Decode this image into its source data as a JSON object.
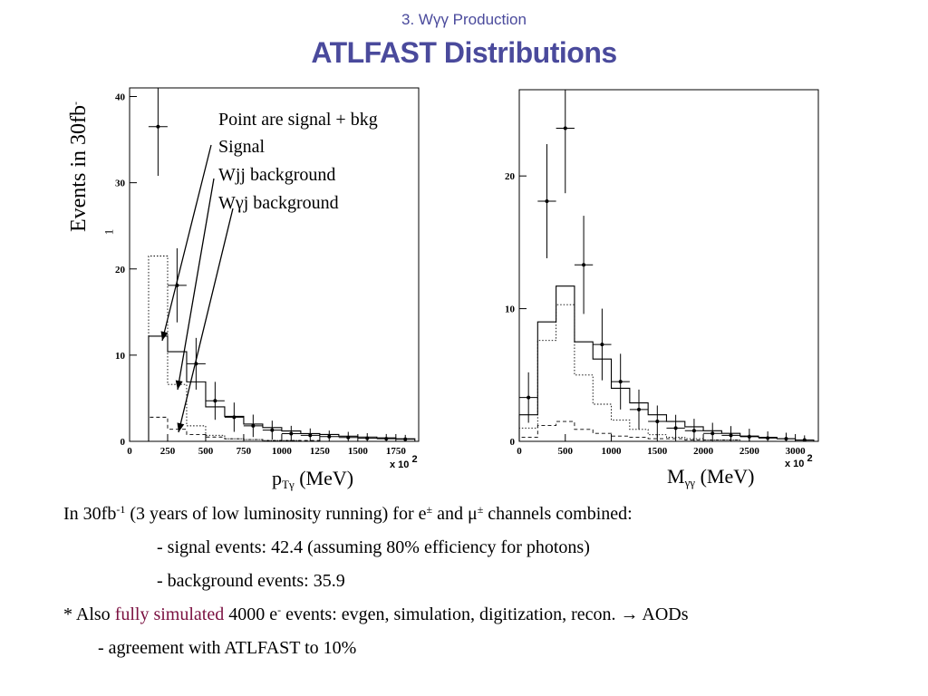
{
  "header": {
    "subtitle": "3. Wγγ Production",
    "title": "ATLFAST Distributions"
  },
  "legend": {
    "points": "Point are signal + bkg",
    "signal": "Signal",
    "wjj": "Wjj background",
    "wgj": "Wγj background"
  },
  "ylabel_main": "Events in 30fb",
  "ylabel_sup1": "-",
  "ylabel_sup2": "1",
  "left_plot": {
    "x_base": "p",
    "x_sub": "Tγ",
    "x_unit": "(MeV)",
    "x_mult": "x 10",
    "x_mult_exp": "2"
  },
  "right_plot": {
    "x_base": "M",
    "x_sub": "γγ",
    "x_unit": "(MeV)",
    "x_mult": "x 10",
    "x_mult_exp": "2"
  },
  "body": {
    "line1_a": "In 30fb",
    "line1_sup": "-1",
    "line1_b": " (3 years of low luminosity running) for e",
    "line1_pm1": "±",
    "line1_c": " and μ",
    "line1_pm2": "±",
    "line1_d": " channels combined:",
    "line2": "- signal events: 42.4 (assuming 80% efficiency for photons)",
    "line3": "- background events: 35.9",
    "line4_a": "* Also ",
    "line4_link": "fully simulated",
    "line4_b": " 4000 e",
    "line4_sup": "-",
    "line4_c": " events: evgen, simulation, digitization, recon. → AODs",
    "line5": "- agreement with ATLFAST to 10%"
  },
  "chart_data": [
    {
      "type": "histogram",
      "x_scale_note": "x 10^2",
      "xlim": [
        0,
        1900
      ],
      "ylim": [
        0,
        41
      ],
      "xticks": [
        0,
        250,
        500,
        750,
        1000,
        1250,
        1500,
        1750
      ],
      "yticks": [
        0,
        10,
        20,
        30,
        40
      ],
      "bin_edges": [
        0,
        125,
        250,
        375,
        500,
        625,
        750,
        875,
        1000,
        1125,
        1250,
        1375,
        1500,
        1625,
        1750,
        1875
      ],
      "series": [
        {
          "name": "Signal",
          "style": "solid",
          "values": [
            0,
            12.2,
            10.4,
            6.9,
            4,
            2.9,
            2,
            1.6,
            1.2,
            0.9,
            0.8,
            0.6,
            0.5,
            0.4,
            0.3
          ]
        },
        {
          "name": "Wjj background",
          "style": "dotted",
          "values": [
            0,
            21.5,
            6.6,
            1.8,
            0.7,
            0.3,
            0.2,
            0.1,
            0.1,
            0,
            0,
            0,
            0,
            0,
            0
          ]
        },
        {
          "name": "Wγj background",
          "style": "dashed",
          "values": [
            0,
            2.8,
            1.4,
            0.8,
            0.5,
            0.3,
            0.2,
            0.1,
            0.1,
            0.1,
            0,
            0,
            0,
            0,
            0
          ]
        }
      ],
      "points": [
        {
          "x": 187,
          "y": 36.5,
          "err": 5.7
        },
        {
          "x": 312,
          "y": 18.1,
          "err": 4.3
        },
        {
          "x": 437,
          "y": 9.0,
          "err": 3.0
        },
        {
          "x": 562,
          "y": 4.7,
          "err": 2.2
        },
        {
          "x": 687,
          "y": 2.8,
          "err": 1.7
        },
        {
          "x": 812,
          "y": 1.8,
          "err": 1.3
        },
        {
          "x": 937,
          "y": 1.3,
          "err": 1.1
        },
        {
          "x": 1062,
          "y": 0.9,
          "err": 0.9
        },
        {
          "x": 1187,
          "y": 0.7,
          "err": 0.8
        },
        {
          "x": 1312,
          "y": 0.55,
          "err": 0.7
        },
        {
          "x": 1437,
          "y": 0.45,
          "err": 0.65
        },
        {
          "x": 1562,
          "y": 0.35,
          "err": 0.6
        },
        {
          "x": 1687,
          "y": 0.3,
          "err": 0.55
        },
        {
          "x": 1812,
          "y": 0.25,
          "err": 0.5
        }
      ]
    },
    {
      "type": "histogram",
      "x_scale_note": "x 10^2",
      "xlim": [
        0,
        3250
      ],
      "ylim": [
        0,
        26.5
      ],
      "xticks": [
        0,
        500,
        1000,
        1500,
        2000,
        2500,
        3000
      ],
      "yticks": [
        0,
        10,
        20
      ],
      "bin_edges": [
        0,
        200,
        400,
        600,
        800,
        1000,
        1200,
        1400,
        1600,
        1800,
        2000,
        2200,
        2400,
        2600,
        2800,
        3000,
        3200
      ],
      "series": [
        {
          "name": "Signal",
          "style": "solid",
          "values": [
            2.0,
            9.0,
            11.7,
            7.5,
            6.2,
            4.0,
            2.9,
            2.0,
            1.5,
            1.1,
            0.8,
            0.6,
            0.4,
            0.3,
            0.2,
            0.1
          ]
        },
        {
          "name": "Wjj background",
          "style": "dotted",
          "values": [
            1.0,
            7.6,
            10.3,
            5.0,
            2.8,
            1.6,
            0.9,
            0.5,
            0.3,
            0.2,
            0.1,
            0.1,
            0,
            0,
            0,
            0
          ]
        },
        {
          "name": "Wγj background",
          "style": "dashed",
          "values": [
            0.3,
            1.2,
            1.5,
            0.9,
            0.6,
            0.4,
            0.3,
            0.2,
            0.2,
            0.1,
            0.1,
            0.1,
            0,
            0,
            0,
            0
          ]
        }
      ],
      "points": [
        {
          "x": 100,
          "y": 3.3,
          "err": 1.9
        },
        {
          "x": 300,
          "y": 18.1,
          "err": 4.3
        },
        {
          "x": 500,
          "y": 23.6,
          "err": 4.9
        },
        {
          "x": 700,
          "y": 13.3,
          "err": 3.7
        },
        {
          "x": 900,
          "y": 7.3,
          "err": 2.7
        },
        {
          "x": 1100,
          "y": 4.5,
          "err": 2.1
        },
        {
          "x": 1300,
          "y": 2.4,
          "err": 1.5
        },
        {
          "x": 1500,
          "y": 1.5,
          "err": 1.2
        },
        {
          "x": 1700,
          "y": 1.0,
          "err": 1.0
        },
        {
          "x": 1900,
          "y": 0.8,
          "err": 0.9
        },
        {
          "x": 2100,
          "y": 0.6,
          "err": 0.8
        },
        {
          "x": 2300,
          "y": 0.45,
          "err": 0.7
        },
        {
          "x": 2500,
          "y": 0.35,
          "err": 0.6
        },
        {
          "x": 2700,
          "y": 0.25,
          "err": 0.5
        },
        {
          "x": 2900,
          "y": 0.2,
          "err": 0.45
        },
        {
          "x": 3100,
          "y": 0.1,
          "err": 0.35
        }
      ]
    }
  ]
}
